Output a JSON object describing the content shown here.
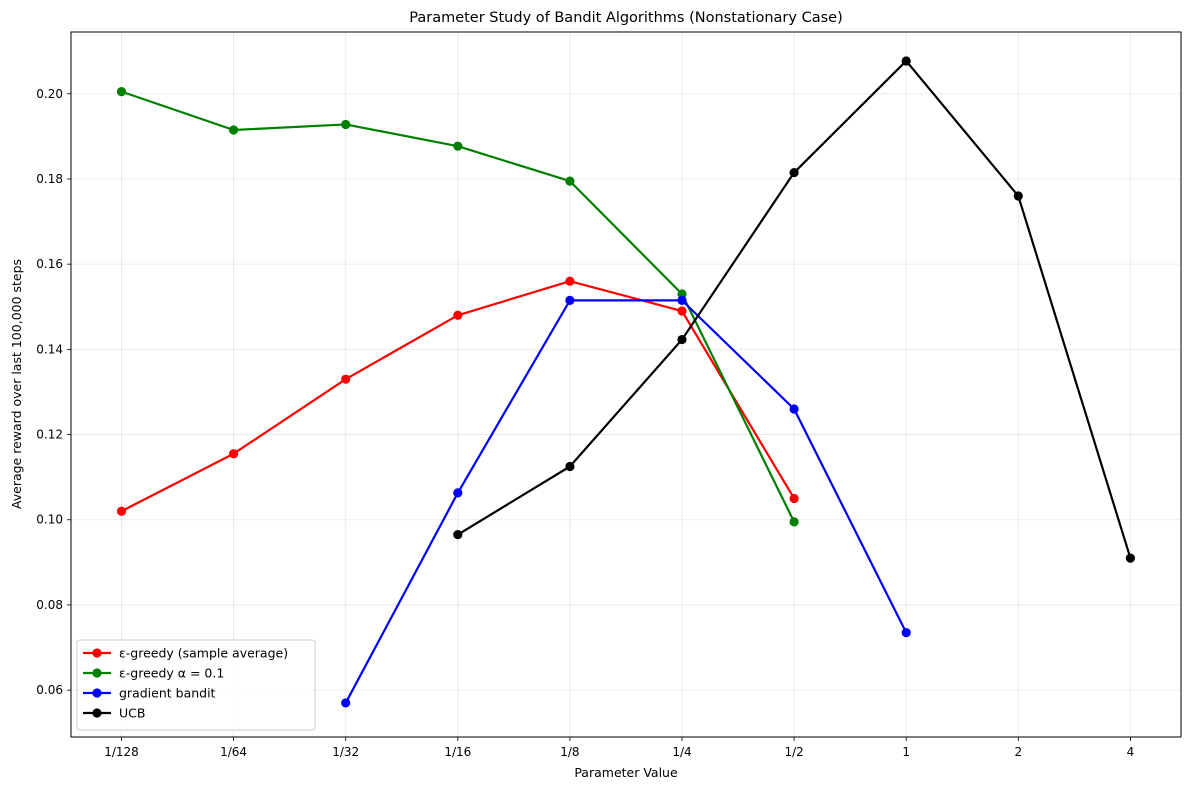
{
  "chart_data": {
    "type": "line",
    "title": "Parameter Study of Bandit Algorithms (Nonstationary Case)",
    "xlabel": "Parameter Value",
    "ylabel": "Average reward over last 100,000 steps",
    "categories": [
      "1/128",
      "1/64",
      "1/32",
      "1/16",
      "1/8",
      "1/4",
      "1/2",
      "1",
      "2",
      "4"
    ],
    "x_scale": "log2",
    "ylim": [
      0.049,
      0.2145
    ],
    "yticks": [
      0.06,
      0.08,
      0.1,
      0.12,
      0.14,
      0.16,
      0.18,
      0.2
    ],
    "ytick_labels": [
      "0.06",
      "0.08",
      "0.10",
      "0.12",
      "0.14",
      "0.16",
      "0.18",
      "0.20"
    ],
    "grid": true,
    "legend_position": "lower-left",
    "series": [
      {
        "name": "ε-greedy (sample average)",
        "color": "#ff0000",
        "x": [
          "1/128",
          "1/64",
          "1/32",
          "1/16",
          "1/8",
          "1/4",
          "1/2"
        ],
        "values": [
          0.102,
          0.1155,
          0.133,
          0.148,
          0.156,
          0.149,
          0.105
        ]
      },
      {
        "name": "ε-greedy α = 0.1",
        "color": "#008000",
        "x": [
          "1/128",
          "1/64",
          "1/32",
          "1/16",
          "1/8",
          "1/4",
          "1/2"
        ],
        "values": [
          0.2005,
          0.1915,
          0.1928,
          0.1877,
          0.1795,
          0.153,
          0.0995
        ]
      },
      {
        "name": "gradient bandit",
        "color": "#0000ff",
        "x": [
          "1/32",
          "1/16",
          "1/8",
          "1/4",
          "1/2",
          "1"
        ],
        "values": [
          0.057,
          0.1063,
          0.1515,
          0.1515,
          0.126,
          0.0735
        ]
      },
      {
        "name": "UCB",
        "color": "#000000",
        "x": [
          "1/16",
          "1/8",
          "1/4",
          "1/2",
          "1",
          "2",
          "4"
        ],
        "values": [
          0.0965,
          0.1125,
          0.1423,
          0.1815,
          0.2077,
          0.176,
          0.091
        ]
      }
    ]
  }
}
